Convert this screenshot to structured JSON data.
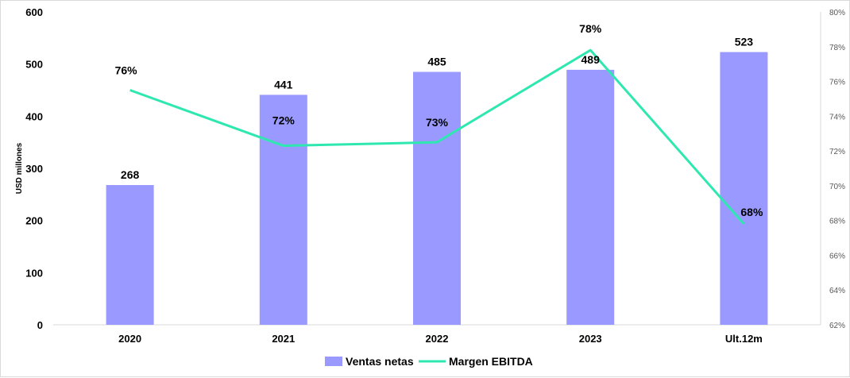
{
  "chart_data": {
    "type": "bar",
    "categories": [
      "2020",
      "2021",
      "2022",
      "2023",
      "Ult.12m"
    ],
    "series": [
      {
        "name": "Ventas netas",
        "type": "bar",
        "axis": "left",
        "color": "#9999ff",
        "values": [
          268,
          441,
          485,
          489,
          523
        ],
        "labels": [
          "268",
          "441",
          "485",
          "489",
          "523"
        ]
      },
      {
        "name": "Margen EBITDA",
        "type": "line",
        "axis": "right",
        "color": "#2ee8b0",
        "values": [
          75.5,
          72.3,
          72.5,
          77.8,
          67.8
        ],
        "labels": [
          "76%",
          "72%",
          "73%",
          "78%",
          "68%"
        ]
      }
    ],
    "ylabel": "USD millones",
    "ylim": [
      0,
      600
    ],
    "yticks": [
      "0",
      "100",
      "200",
      "300",
      "400",
      "500",
      "600"
    ],
    "y2lim": [
      62,
      80
    ],
    "y2ticks": [
      "62%",
      "64%",
      "66%",
      "68%",
      "70%",
      "72%",
      "74%",
      "76%",
      "78%",
      "80%"
    ],
    "grid": false,
    "legend_position": "bottom"
  }
}
